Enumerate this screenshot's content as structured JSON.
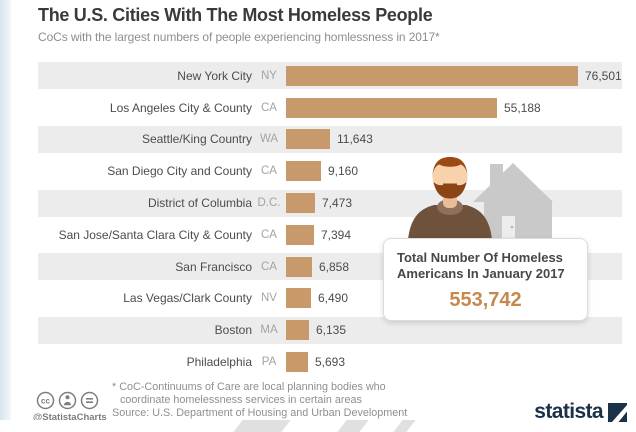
{
  "header": {
    "title": "The U.S. Cities With The Most Homeless People",
    "subtitle": "CoCs with the largest numbers of people experiencing homlessness in 2017*"
  },
  "chart_data": {
    "type": "bar",
    "orientation": "horizontal",
    "title": "The U.S. Cities With The Most Homeless People",
    "subtitle": "CoCs with the largest numbers of people experiencing homlessness in 2017*",
    "bar_color": "#c89a6b",
    "max_value": 76501,
    "rows": [
      {
        "city": "New York City",
        "state": "NY",
        "value": 76501,
        "label": "76,501"
      },
      {
        "city": "Los Angeles City & County",
        "state": "CA",
        "value": 55188,
        "label": "55,188"
      },
      {
        "city": "Seattle/King Country",
        "state": "WA",
        "value": 11643,
        "label": "11,643"
      },
      {
        "city": "San Diego City and County",
        "state": "CA",
        "value": 9160,
        "label": "9,160"
      },
      {
        "city": "District of Columbia",
        "state": "D.C.",
        "value": 7473,
        "label": "7,473"
      },
      {
        "city": "San Jose/Santa Clara City & County",
        "state": "CA",
        "value": 7394,
        "label": "7,394"
      },
      {
        "city": "San Francisco",
        "state": "CA",
        "value": 6858,
        "label": "6,858"
      },
      {
        "city": "Las Vegas/Clark County",
        "state": "NV",
        "value": 6490,
        "label": "6,490"
      },
      {
        "city": "Boston",
        "state": "MA",
        "value": 6135,
        "label": "6,135"
      },
      {
        "city": "Philadelphia",
        "state": "PA",
        "value": 5693,
        "label": "5,693"
      }
    ]
  },
  "callout": {
    "line1": "Total Number Of Homeless",
    "line2": "Americans In January 2017",
    "value": "553,742"
  },
  "footer": {
    "handle": "@StatistaCharts",
    "footnote_line1": "* CoC-Continuums of Care are local planning bodies who",
    "footnote_line2": "coordinate homelessness services in certain areas",
    "source": "Source: U.S. Department of Housing and Urban Development",
    "brand": "statista"
  },
  "colors": {
    "bar": "#c89a6b",
    "band": "#ececec",
    "accent_number": "#c5894e",
    "brand_navy": "#1b3147",
    "title_text": "#3a3a3a",
    "muted_text": "#8f8f8f"
  }
}
